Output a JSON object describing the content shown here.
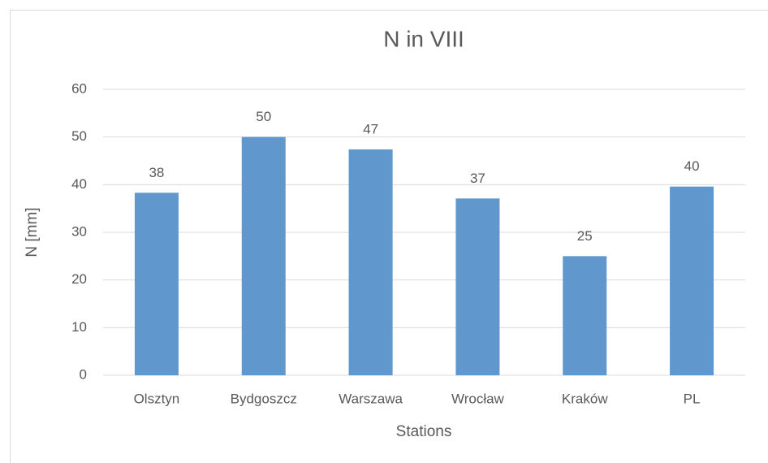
{
  "chart_data": {
    "type": "bar",
    "title": "N in VIII",
    "x_label": "Stations",
    "y_label": "N [mm]",
    "categories": [
      "Olsztyn",
      "Bydgoszcz",
      "Warszawa",
      "Wrocław",
      "Kraków",
      "PL"
    ],
    "values": [
      38.3,
      50,
      47.4,
      37.1,
      25,
      39.6
    ],
    "value_labels": [
      "38",
      "50",
      "47",
      "37",
      "25",
      "40"
    ],
    "color": "#6097cc",
    "ylim": [
      0,
      60
    ],
    "yticks": [
      0,
      10,
      20,
      30,
      40,
      50,
      60
    ],
    "grid": true
  }
}
